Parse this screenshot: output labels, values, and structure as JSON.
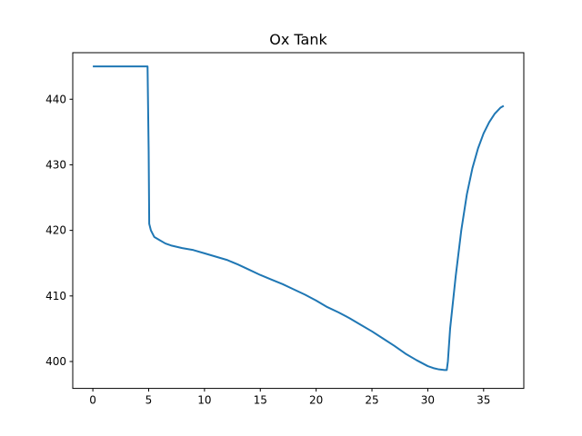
{
  "chart_data": {
    "type": "line",
    "title": "Ox Tank",
    "xlabel": "",
    "ylabel": "",
    "xlim": [
      -1.8,
      38.6
    ],
    "ylim": [
      395.9,
      447.1
    ],
    "x_ticks": [
      0,
      5,
      10,
      15,
      20,
      25,
      30,
      35
    ],
    "y_ticks": [
      400,
      410,
      420,
      430,
      440
    ],
    "grid": false,
    "color": "#1f77b4",
    "series": [
      {
        "x": [
          0.0,
          1.0,
          2.0,
          3.0,
          4.0,
          4.9,
          5.0,
          5.05,
          5.2,
          5.5,
          6.0,
          6.5,
          7.0,
          8.0,
          9.0,
          10.0,
          11.0,
          12.0,
          13.0,
          14.0,
          15.0,
          16.0,
          17.0,
          18.0,
          19.0,
          20.0,
          21.0,
          22.0,
          23.0,
          24.0,
          25.0,
          26.0,
          27.0,
          28.0,
          29.0,
          30.0,
          30.5,
          31.0,
          31.5,
          31.7,
          31.8,
          32.0,
          32.5,
          33.0,
          33.5,
          34.0,
          34.5,
          35.0,
          35.5,
          36.0,
          36.5,
          36.8
        ],
        "y": [
          445.0,
          445.0,
          445.0,
          445.0,
          445.0,
          445.0,
          432.0,
          421.0,
          420.0,
          419.0,
          418.5,
          418.0,
          417.7,
          417.3,
          417.0,
          416.5,
          416.0,
          415.5,
          414.8,
          414.0,
          413.2,
          412.5,
          411.8,
          411.0,
          410.2,
          409.3,
          408.3,
          407.5,
          406.6,
          405.6,
          404.6,
          403.5,
          402.4,
          401.2,
          400.2,
          399.3,
          399.0,
          398.8,
          398.7,
          398.7,
          400.0,
          405.0,
          413.0,
          420.0,
          425.5,
          429.5,
          432.5,
          434.8,
          436.5,
          437.8,
          438.7,
          439.0
        ]
      }
    ]
  }
}
